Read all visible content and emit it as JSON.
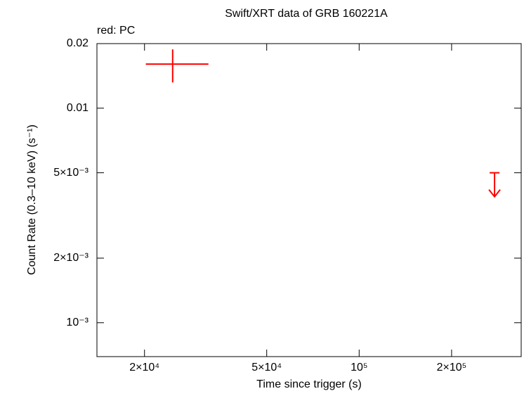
{
  "chart_data": {
    "type": "scatter",
    "title": "Swift/XRT data of GRB 160221A",
    "annotation": "red: PC",
    "x_label": "Time since trigger (s)",
    "y_label": "Count Rate (0.3–10 keV) (s⁻¹)",
    "log_x": true,
    "log_y": true,
    "xlim": [
      14000,
      337000
    ],
    "ylim": [
      0.000695,
      0.02
    ],
    "xticks": [
      {
        "value": 20000,
        "label": "2×10⁴"
      },
      {
        "value": 50000,
        "label": "5×10⁴"
      },
      {
        "value": 100000,
        "label": "10⁵"
      },
      {
        "value": 200000,
        "label": "2×10⁵"
      }
    ],
    "yticks": [
      {
        "value": 0.001,
        "label": "10⁻³"
      },
      {
        "value": 0.002,
        "label": "2×10⁻³"
      },
      {
        "value": 0.005,
        "label": "5×10⁻³"
      },
      0.01,
      0.02
    ],
    "color": "#ff0000",
    "points": {
      "x": [
        24700
      ],
      "x_low": [
        20200
      ],
      "x_high": [
        32300
      ],
      "y": [
        0.01605
      ],
      "y_low": [
        0.01318
      ],
      "y_high": [
        0.0188
      ]
    },
    "upper_limits": {
      "x": [
        276000
      ],
      "y": [
        0.005
      ]
    }
  }
}
